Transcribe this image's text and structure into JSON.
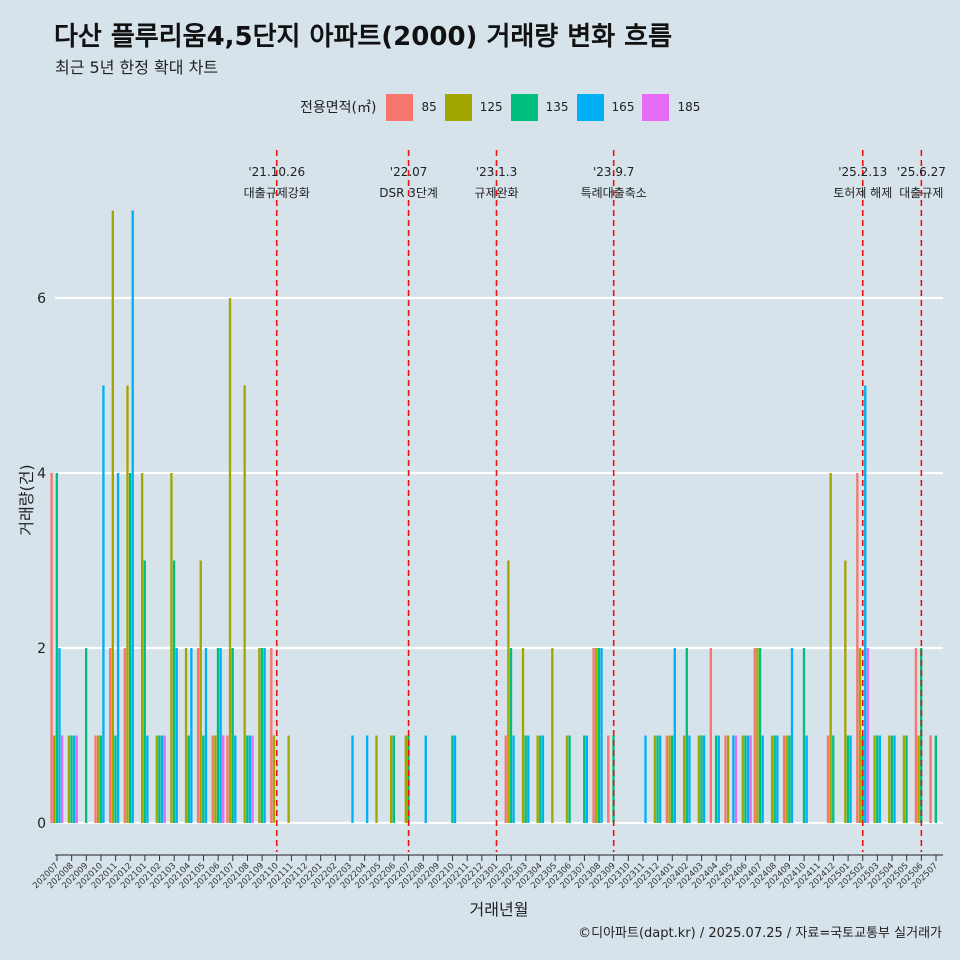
{
  "title": "다산 플루리움4,5단지 아파트(2000) 거래량 변화 흐름",
  "subtitle": "최근 5년 한정 확대 차트",
  "caption": "©디아파트(dapt.kr) / 2025.07.25 / 자료=국토교통부 실거래가",
  "chart_data": {
    "type": "bar",
    "title": "다산 플루리움4,5단지 아파트(2000) 거래량 변화 흐름",
    "xlabel": "거래년월",
    "ylabel": "거래량(건)",
    "ylim": [
      0,
      7.5
    ],
    "yticks": [
      0,
      2,
      4,
      6
    ],
    "legend_title": "전용면적(㎡)",
    "legend_position": "top",
    "colors": {
      "85": "#f8766d",
      "125": "#a3a500",
      "135": "#00bf7d",
      "165": "#00b0f6",
      "185": "#e76bf3"
    },
    "categories": [
      "202007",
      "202008",
      "202009",
      "202010",
      "202011",
      "202012",
      "202101",
      "202102",
      "202103",
      "202104",
      "202105",
      "202106",
      "202107",
      "202108",
      "202109",
      "202110",
      "202111",
      "202112",
      "202201",
      "202202",
      "202203",
      "202204",
      "202205",
      "202206",
      "202207",
      "202208",
      "202209",
      "202210",
      "202211",
      "202212",
      "202301",
      "202302",
      "202303",
      "202304",
      "202305",
      "202306",
      "202307",
      "202308",
      "202309",
      "202310",
      "202311",
      "202312",
      "202401",
      "202402",
      "202403",
      "202404",
      "202405",
      "202406",
      "202407",
      "202408",
      "202409",
      "202410",
      "202411",
      "202412",
      "202501",
      "202502",
      "202503",
      "202504",
      "202505",
      "202506",
      "202507"
    ],
    "series": [
      {
        "name": "85",
        "values": [
          4,
          0,
          0,
          1,
          2,
          2,
          0,
          0,
          0,
          0,
          2,
          1,
          1,
          0,
          0,
          2,
          0,
          0,
          0,
          0,
          0,
          0,
          0,
          0,
          0,
          0,
          0,
          0,
          0,
          0,
          0,
          1,
          0,
          0,
          0,
          0,
          0,
          2,
          1,
          0,
          0,
          0,
          1,
          0,
          0,
          2,
          1,
          0,
          2,
          0,
          1,
          0,
          0,
          1,
          0,
          4,
          0,
          0,
          0,
          2,
          1
        ]
      },
      {
        "name": "125",
        "values": [
          1,
          1,
          0,
          1,
          7,
          5,
          4,
          1,
          4,
          2,
          3,
          1,
          6,
          5,
          2,
          1,
          1,
          0,
          0,
          0,
          0,
          0,
          1,
          1,
          1,
          0,
          0,
          0,
          0,
          0,
          0,
          3,
          2,
          1,
          2,
          1,
          0,
          2,
          0,
          0,
          0,
          1,
          1,
          1,
          1,
          0,
          1,
          1,
          2,
          1,
          1,
          0,
          0,
          4,
          3,
          2,
          1,
          1,
          1,
          1,
          0
        ]
      },
      {
        "name": "135",
        "values": [
          4,
          1,
          2,
          1,
          1,
          4,
          3,
          1,
          3,
          1,
          1,
          2,
          2,
          1,
          2,
          0,
          0,
          0,
          0,
          0,
          0,
          0,
          0,
          1,
          1,
          0,
          0,
          1,
          0,
          0,
          0,
          2,
          1,
          1,
          0,
          1,
          1,
          2,
          1,
          0,
          0,
          1,
          1,
          2,
          1,
          1,
          0,
          1,
          2,
          1,
          1,
          2,
          0,
          1,
          1,
          1,
          1,
          1,
          1,
          2,
          1
        ]
      },
      {
        "name": "165",
        "values": [
          2,
          1,
          0,
          5,
          4,
          7,
          1,
          1,
          2,
          2,
          2,
          2,
          1,
          1,
          2,
          0,
          0,
          0,
          0,
          0,
          1,
          1,
          0,
          0,
          0,
          1,
          0,
          1,
          0,
          0,
          0,
          1,
          1,
          1,
          0,
          0,
          1,
          2,
          0,
          0,
          1,
          1,
          2,
          1,
          1,
          1,
          1,
          1,
          1,
          1,
          2,
          1,
          0,
          0,
          1,
          5,
          1,
          1,
          0,
          0,
          0
        ]
      },
      {
        "name": "185",
        "values": [
          1,
          1,
          0,
          0,
          0,
          0,
          0,
          1,
          0,
          0,
          0,
          1,
          0,
          1,
          0,
          0,
          0,
          0,
          0,
          0,
          0,
          0,
          0,
          0,
          0,
          0,
          0,
          0,
          0,
          0,
          0,
          0,
          0,
          0,
          0,
          0,
          0,
          0,
          0,
          0,
          0,
          0,
          0,
          0,
          0,
          0,
          1,
          1,
          0,
          0,
          0,
          0,
          0,
          0,
          0,
          2,
          0,
          0,
          0,
          0,
          0
        ]
      }
    ],
    "annotations": [
      {
        "category": "202110",
        "date": "'21.10.26",
        "label": "대출규제강화"
      },
      {
        "category": "202207",
        "date": "'22.07",
        "label": "DSR 3단계"
      },
      {
        "category": "202301",
        "date": "'23.1.3",
        "label": "규제완화"
      },
      {
        "category": "202309",
        "date": "'23.9.7",
        "label": "특례대출축소"
      },
      {
        "category": "202502",
        "date": "'25.2.13",
        "label": "토허제 해제"
      },
      {
        "category": "202506",
        "date": "'25.6.27",
        "label": "대출규제"
      }
    ]
  }
}
